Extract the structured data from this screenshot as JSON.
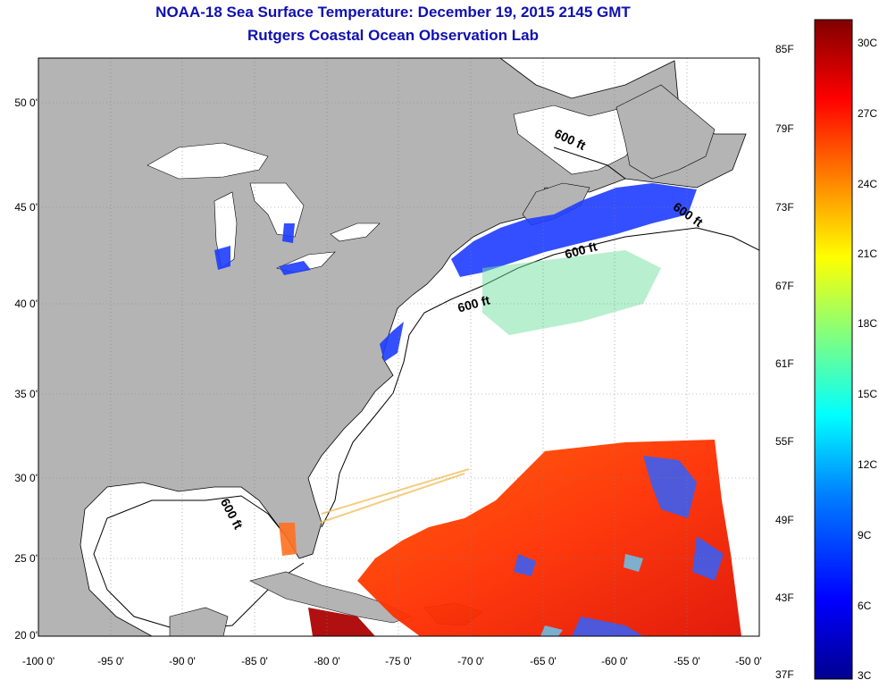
{
  "title_line1": "NOAA-18 Sea Surface Temperature:  December 19, 2015 2145 GMT",
  "title_line2": "Rutgers Coastal Ocean Observation Lab",
  "lat_labels": [
    "50 0'",
    "45 0'",
    "40 0'",
    "35 0'",
    "30 0'",
    "25 0'",
    "20 0'"
  ],
  "lon_labels": [
    "-100 0'",
    "-95 0'",
    "-90 0'",
    "-85 0'",
    "-80 0'",
    "-75 0'",
    "-70 0'",
    "-65 0'",
    "-60 0'",
    "-55 0'",
    "-50 0'"
  ],
  "contour_label": "600 ft",
  "colorbar": {
    "fahrenheit_labels": [
      "85F",
      "79F",
      "73F",
      "67F",
      "61F",
      "55F",
      "49F",
      "43F",
      "37F"
    ],
    "celsius_labels": [
      "30C",
      "27C",
      "24C",
      "21C",
      "18C",
      "15C",
      "12C",
      "9C",
      "6C",
      "3C"
    ],
    "colors": [
      "#800000",
      "#ff0000",
      "#ff8000",
      "#ffff00",
      "#80ff80",
      "#00ffff",
      "#0080ff",
      "#0000ff",
      "#00008f"
    ]
  },
  "colors": {
    "title": "#1010b0",
    "land": "#b4b4b4",
    "ocean_nodata": "#ffffff",
    "grid": "#808080"
  }
}
